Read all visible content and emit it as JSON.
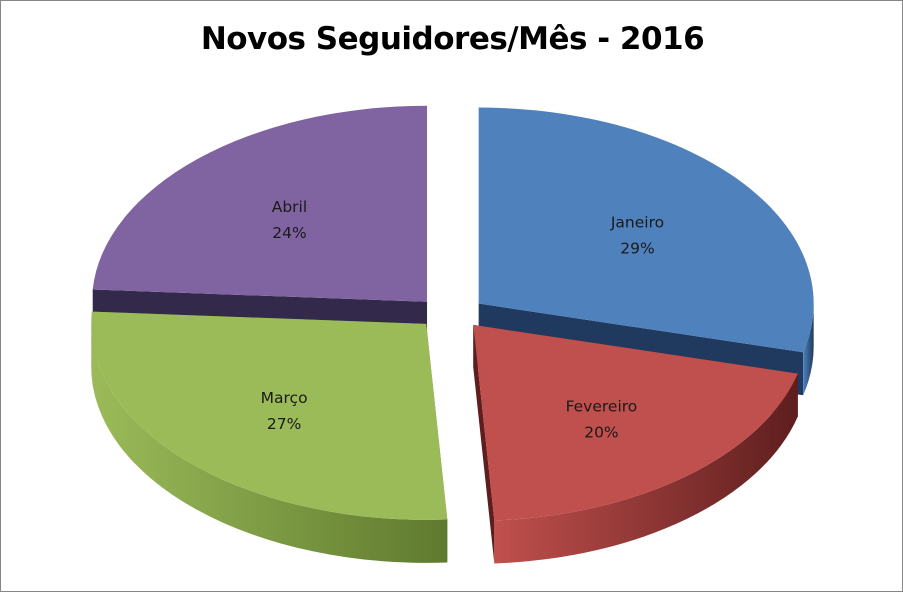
{
  "chart_data": {
    "type": "pie",
    "style": "3d-exploded",
    "title": "Novos Seguidores/Mês - 2016",
    "categories": [
      "Janeiro",
      "Fevereiro",
      "Março",
      "Abril"
    ],
    "values": [
      29,
      20,
      27,
      24
    ],
    "labels": [
      "29%",
      "20%",
      "27%",
      "24%"
    ],
    "colors": [
      "#4f81bd",
      "#c0504d",
      "#9bbb59",
      "#8064a2"
    ],
    "side_colors": [
      "#1f3a5e",
      "#5e1e1e",
      "#5f7a2e",
      "#33294a"
    ],
    "legend": "none"
  }
}
